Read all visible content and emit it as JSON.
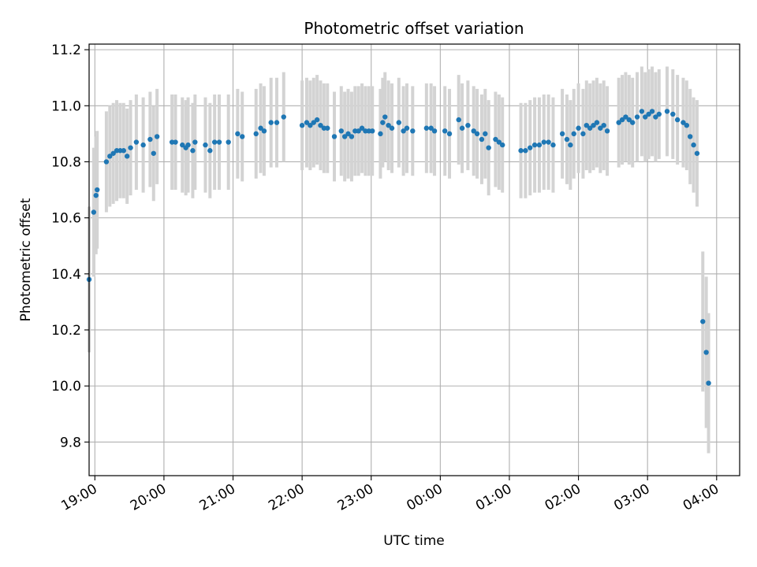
{
  "chart_data": {
    "type": "scatter",
    "title": "Photometric offset variation",
    "xlabel": "UTC time",
    "ylabel": "Photometric offset",
    "xlim": [
      "18:55",
      "04:20"
    ],
    "ylim": [
      9.68,
      11.22
    ],
    "x_ticks": [
      "19:00",
      "20:00",
      "21:00",
      "22:00",
      "23:00",
      "00:00",
      "01:00",
      "02:00",
      "03:00",
      "04:00"
    ],
    "y_ticks": [
      "9.8",
      "10.0",
      "10.2",
      "10.4",
      "10.6",
      "10.8",
      "11.0",
      "11.2"
    ],
    "grid": true,
    "colors": {
      "points": "#1f77b4",
      "errorbars": "#d3d3d3",
      "grid": "#b0b0b0"
    },
    "series": [
      {
        "x": [
          "18:55",
          "18:59",
          "19:01",
          "19:02",
          "19:10",
          "19:13",
          "19:16",
          "19:19",
          "19:22",
          "19:25",
          "19:28",
          "19:31",
          "19:36",
          "19:42",
          "19:48",
          "19:51",
          "19:54",
          "20:07",
          "20:10",
          "20:16",
          "20:19",
          "20:21",
          "20:25",
          "20:27",
          "20:36",
          "20:40",
          "20:44",
          "20:48",
          "20:56",
          "21:04",
          "21:08",
          "21:20",
          "21:24",
          "21:27",
          "21:33",
          "21:38",
          "21:44",
          "22:00",
          "22:04",
          "22:07",
          "22:10",
          "22:13",
          "22:16",
          "22:19",
          "22:22",
          "22:28",
          "22:34",
          "22:37",
          "22:40",
          "22:43",
          "22:46",
          "22:49",
          "22:52",
          "22:55",
          "22:58",
          "23:01",
          "23:08",
          "23:10",
          "23:12",
          "23:15",
          "23:18",
          "23:24",
          "23:28",
          "23:31",
          "23:36",
          "23:48",
          "23:52",
          "23:55",
          "00:04",
          "00:08",
          "00:16",
          "00:19",
          "00:24",
          "00:29",
          "00:32",
          "00:36",
          "00:39",
          "00:42",
          "00:48",
          "00:51",
          "00:54",
          "01:10",
          "01:14",
          "01:18",
          "01:22",
          "01:26",
          "01:30",
          "01:34",
          "01:38",
          "01:46",
          "01:50",
          "01:53",
          "01:56",
          "02:00",
          "02:04",
          "02:07",
          "02:10",
          "02:13",
          "02:16",
          "02:19",
          "02:22",
          "02:25",
          "02:35",
          "02:38",
          "02:41",
          "02:44",
          "02:47",
          "02:51",
          "02:55",
          "02:58",
          "03:01",
          "03:04",
          "03:07",
          "03:10",
          "03:17",
          "03:22",
          "03:26",
          "03:31",
          "03:34",
          "03:37",
          "03:40",
          "03:43",
          "03:48",
          "03:51",
          "03:53"
        ],
        "y": [
          10.38,
          10.62,
          10.68,
          10.7,
          10.8,
          10.82,
          10.83,
          10.84,
          10.84,
          10.84,
          10.82,
          10.85,
          10.87,
          10.86,
          10.88,
          10.83,
          10.89,
          10.87,
          10.87,
          10.86,
          10.85,
          10.86,
          10.84,
          10.87,
          10.86,
          10.84,
          10.87,
          10.87,
          10.87,
          10.9,
          10.89,
          10.9,
          10.92,
          10.91,
          10.94,
          10.94,
          10.96,
          10.93,
          10.94,
          10.93,
          10.94,
          10.95,
          10.93,
          10.92,
          10.92,
          10.89,
          10.91,
          10.89,
          10.9,
          10.89,
          10.91,
          10.91,
          10.92,
          10.91,
          10.91,
          10.91,
          10.9,
          10.94,
          10.96,
          10.93,
          10.92,
          10.94,
          10.91,
          10.92,
          10.91,
          10.92,
          10.92,
          10.91,
          10.91,
          10.9,
          10.95,
          10.92,
          10.93,
          10.91,
          10.9,
          10.88,
          10.9,
          10.85,
          10.88,
          10.87,
          10.86,
          10.84,
          10.84,
          10.85,
          10.86,
          10.86,
          10.87,
          10.87,
          10.86,
          10.9,
          10.88,
          10.86,
          10.9,
          10.92,
          10.9,
          10.93,
          10.92,
          10.93,
          10.94,
          10.92,
          10.93,
          10.91,
          10.94,
          10.95,
          10.96,
          10.95,
          10.94,
          10.96,
          10.98,
          10.96,
          10.97,
          10.98,
          10.96,
          10.97,
          10.98,
          10.97,
          10.95,
          10.94,
          10.93,
          10.89,
          10.86,
          10.83,
          10.23,
          10.12,
          10.01
        ],
        "yerr": [
          0.26,
          0.23,
          0.21,
          0.21,
          0.18,
          0.18,
          0.18,
          0.18,
          0.17,
          0.17,
          0.17,
          0.17,
          0.17,
          0.17,
          0.17,
          0.17,
          0.17,
          0.17,
          0.17,
          0.17,
          0.17,
          0.17,
          0.17,
          0.17,
          0.17,
          0.17,
          0.17,
          0.17,
          0.17,
          0.16,
          0.16,
          0.16,
          0.16,
          0.16,
          0.16,
          0.16,
          0.16,
          0.16,
          0.16,
          0.16,
          0.16,
          0.16,
          0.16,
          0.16,
          0.16,
          0.16,
          0.16,
          0.16,
          0.16,
          0.16,
          0.16,
          0.16,
          0.16,
          0.16,
          0.16,
          0.16,
          0.16,
          0.16,
          0.16,
          0.16,
          0.16,
          0.16,
          0.16,
          0.16,
          0.16,
          0.16,
          0.16,
          0.16,
          0.16,
          0.16,
          0.16,
          0.16,
          0.16,
          0.16,
          0.16,
          0.16,
          0.16,
          0.17,
          0.17,
          0.17,
          0.17,
          0.17,
          0.17,
          0.17,
          0.17,
          0.17,
          0.17,
          0.17,
          0.17,
          0.16,
          0.16,
          0.16,
          0.16,
          0.16,
          0.16,
          0.16,
          0.16,
          0.16,
          0.16,
          0.16,
          0.16,
          0.16,
          0.16,
          0.16,
          0.16,
          0.16,
          0.16,
          0.16,
          0.16,
          0.16,
          0.16,
          0.16,
          0.16,
          0.16,
          0.16,
          0.16,
          0.16,
          0.16,
          0.16,
          0.17,
          0.17,
          0.19,
          0.25,
          0.27,
          0.25
        ]
      }
    ]
  }
}
